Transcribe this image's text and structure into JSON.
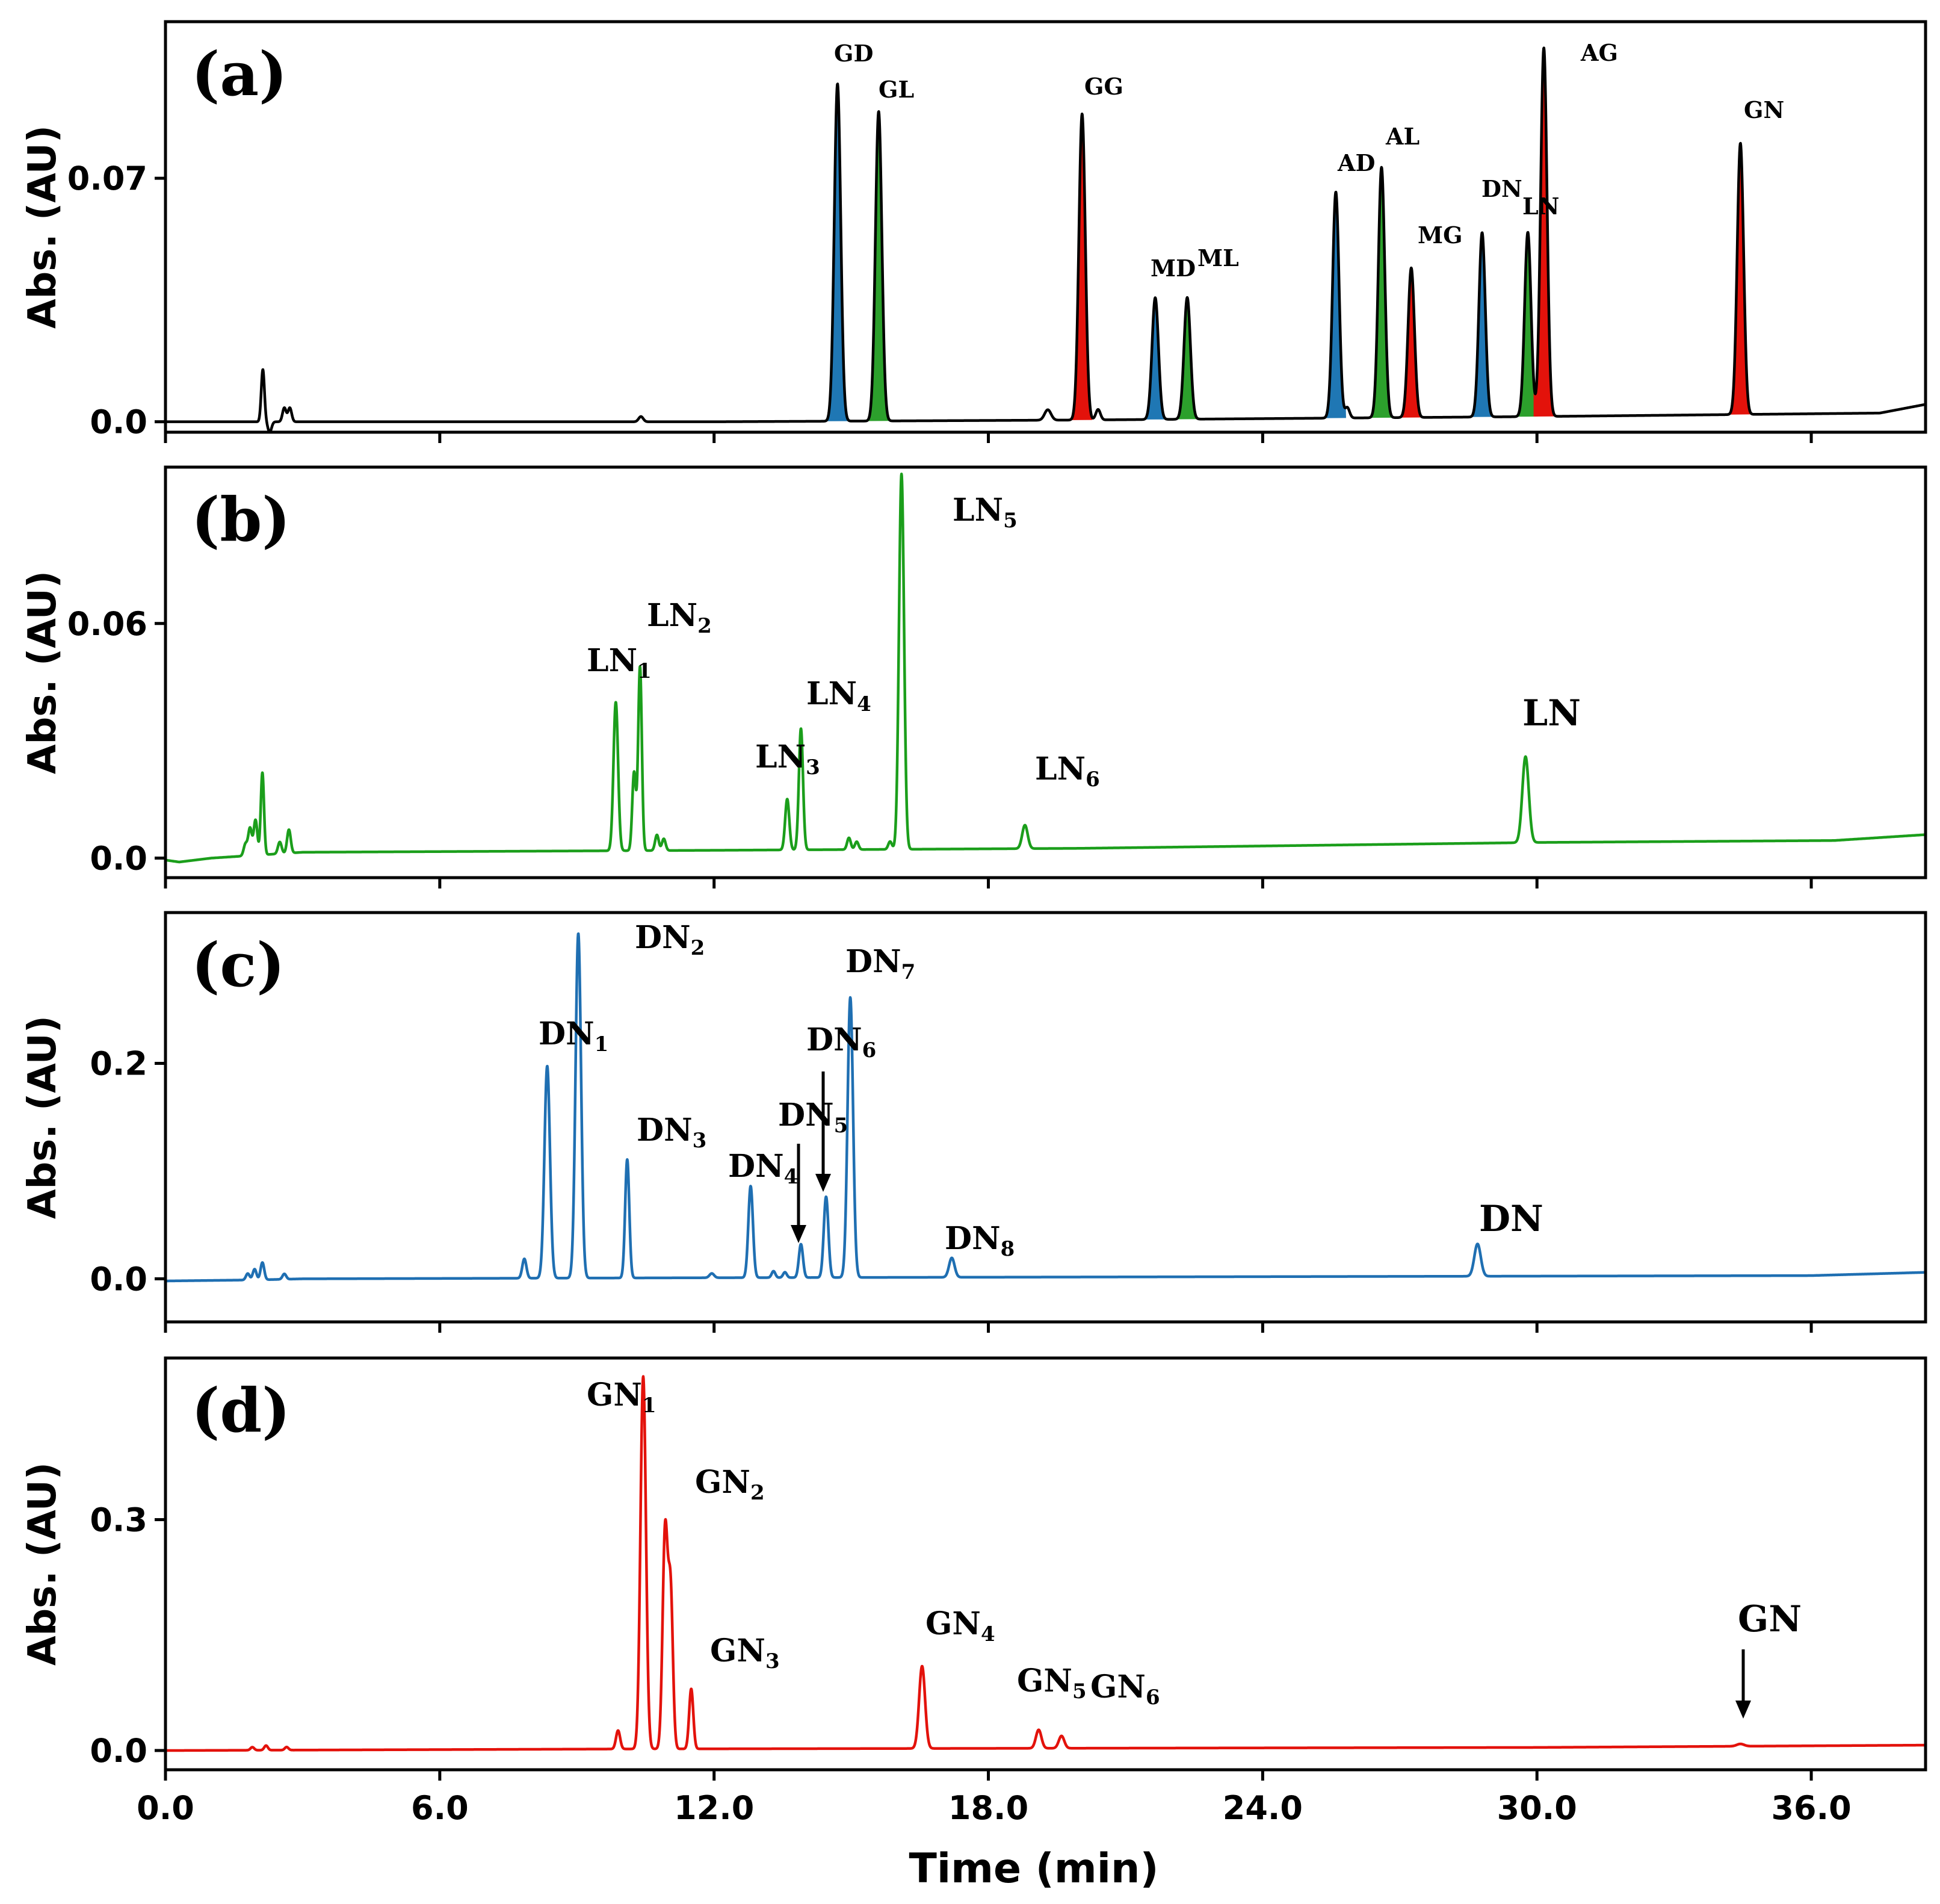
{
  "chart_data": {
    "type": "line",
    "xlabel": "Time (min)",
    "xlim": [
      0,
      38.5
    ],
    "x_ticks": [
      {
        "value": 0,
        "label": "0.0"
      },
      {
        "value": 6,
        "label": "6.0"
      },
      {
        "value": 12,
        "label": "12.0"
      },
      {
        "value": 18,
        "label": "18.0"
      },
      {
        "value": 24,
        "label": "24.0"
      },
      {
        "value": 30,
        "label": "30.0"
      },
      {
        "value": 36,
        "label": "36.0"
      }
    ],
    "panels": [
      {
        "id": "a",
        "label": "(a)",
        "ylabel": "Abs. (AU)",
        "ylim": [
          -0.003,
          0.115
        ],
        "y_ticks": [
          {
            "value": 0,
            "label": "0.0"
          },
          {
            "value": 0.07,
            "label": "0.07"
          }
        ],
        "color": "#000000",
        "baseline": [
          [
            0,
            0
          ],
          [
            12,
            0.0
          ],
          [
            20,
            0.0005
          ],
          [
            30,
            0.0015
          ],
          [
            37.5,
            0.0025
          ],
          [
            38.5,
            0.005
          ]
        ],
        "peaks": [
          {
            "t": 2.13,
            "h": 0.015,
            "w": 0.035,
            "fill": "",
            "label": "",
            "sub": ""
          },
          {
            "t": 2.28,
            "h": -0.003,
            "w": 0.04,
            "fill": "",
            "label": "",
            "sub": ""
          },
          {
            "t": 2.6,
            "h": 0.004,
            "w": 0.04,
            "fill": "",
            "label": "",
            "sub": ""
          },
          {
            "t": 2.72,
            "h": 0.004,
            "w": 0.04,
            "fill": "",
            "label": "",
            "sub": ""
          },
          {
            "t": 10.4,
            "h": 0.0015,
            "w": 0.05,
            "fill": "",
            "label": "",
            "sub": ""
          },
          {
            "t": 14.7,
            "h": 0.097,
            "w": 0.07,
            "fill": "#1f77b4",
            "label": "GD",
            "sub": ""
          },
          {
            "t": 15.6,
            "h": 0.089,
            "w": 0.07,
            "fill": "#2ca02c",
            "label": "GL",
            "sub": ""
          },
          {
            "t": 19.3,
            "h": 0.003,
            "w": 0.07,
            "fill": "",
            "label": "",
            "sub": ""
          },
          {
            "t": 20.05,
            "h": 0.088,
            "w": 0.07,
            "fill": "#e3120b",
            "label": "GG",
            "sub": ""
          },
          {
            "t": 20.4,
            "h": 0.003,
            "w": 0.05,
            "fill": "",
            "label": "",
            "sub": ""
          },
          {
            "t": 21.65,
            "h": 0.035,
            "w": 0.07,
            "fill": "#1f77b4",
            "label": "MD",
            "sub": ""
          },
          {
            "t": 22.35,
            "h": 0.035,
            "w": 0.07,
            "fill": "#2ca02c",
            "label": "ML",
            "sub": ""
          },
          {
            "t": 25.6,
            "h": 0.065,
            "w": 0.07,
            "fill": "#1f77b4",
            "label": "AD",
            "sub": ""
          },
          {
            "t": 25.85,
            "h": 0.003,
            "w": 0.05,
            "fill": "",
            "label": "",
            "sub": ""
          },
          {
            "t": 26.6,
            "h": 0.072,
            "w": 0.07,
            "fill": "#2ca02c",
            "label": "AL",
            "sub": ""
          },
          {
            "t": 27.25,
            "h": 0.043,
            "w": 0.07,
            "fill": "#e3120b",
            "label": "MG",
            "sub": ""
          },
          {
            "t": 28.8,
            "h": 0.053,
            "w": 0.07,
            "fill": "#1f77b4",
            "label": "DN",
            "sub": ""
          },
          {
            "t": 29.8,
            "h": 0.053,
            "w": 0.07,
            "fill": "#2ca02c",
            "label": "LN",
            "sub": ""
          },
          {
            "t": 30.15,
            "h": 0.106,
            "w": 0.07,
            "fill": "#e3120b",
            "label": "AG",
            "sub": ""
          },
          {
            "t": 34.45,
            "h": 0.078,
            "w": 0.07,
            "fill": "#e3120b",
            "label": "GN",
            "sub": ""
          }
        ]
      },
      {
        "id": "b",
        "label": "(b)",
        "ylabel": "Abs. (AU)",
        "ylim": [
          -0.005,
          0.1
        ],
        "y_ticks": [
          {
            "value": 0,
            "label": "0.0"
          },
          {
            "value": 0.06,
            "label": "0.06"
          }
        ],
        "color": "#1b9e1b",
        "baseline": [
          [
            0,
            -0.0005
          ],
          [
            0.3,
            -0.001
          ],
          [
            1,
            0.0
          ],
          [
            3,
            0.0015
          ],
          [
            12,
            0.002
          ],
          [
            20,
            0.0025
          ],
          [
            30,
            0.004
          ],
          [
            36.5,
            0.0045
          ],
          [
            38.5,
            0.006
          ]
        ],
        "peaks": [
          {
            "t": 1.75,
            "h": 0.003,
            "w": 0.04,
            "fill": "",
            "label": "",
            "sub": ""
          },
          {
            "t": 1.85,
            "h": 0.007,
            "w": 0.04,
            "fill": "",
            "label": "",
            "sub": ""
          },
          {
            "t": 1.97,
            "h": 0.009,
            "w": 0.04,
            "fill": "",
            "label": "",
            "sub": ""
          },
          {
            "t": 2.12,
            "h": 0.021,
            "w": 0.035,
            "fill": "",
            "label": "",
            "sub": ""
          },
          {
            "t": 2.5,
            "h": 0.003,
            "w": 0.04,
            "fill": "",
            "label": "",
            "sub": ""
          },
          {
            "t": 2.7,
            "h": 0.006,
            "w": 0.04,
            "fill": "",
            "label": "",
            "sub": ""
          },
          {
            "t": 9.85,
            "h": 0.038,
            "w": 0.05,
            "fill": "",
            "label": "LN",
            "sub": "1"
          },
          {
            "t": 10.25,
            "h": 0.02,
            "w": 0.04,
            "fill": "",
            "label": "",
            "sub": ""
          },
          {
            "t": 10.38,
            "h": 0.047,
            "w": 0.04,
            "fill": "",
            "label": "LN",
            "sub": "2"
          },
          {
            "t": 10.75,
            "h": 0.004,
            "w": 0.04,
            "fill": "",
            "label": "",
            "sub": ""
          },
          {
            "t": 10.9,
            "h": 0.003,
            "w": 0.04,
            "fill": "",
            "label": "",
            "sub": ""
          },
          {
            "t": 13.6,
            "h": 0.013,
            "w": 0.045,
            "fill": "",
            "label": "LN",
            "sub": "3"
          },
          {
            "t": 13.9,
            "h": 0.031,
            "w": 0.045,
            "fill": "",
            "label": "LN",
            "sub": "4"
          },
          {
            "t": 14.95,
            "h": 0.003,
            "w": 0.04,
            "fill": "",
            "label": "",
            "sub": ""
          },
          {
            "t": 15.12,
            "h": 0.002,
            "w": 0.04,
            "fill": "",
            "label": "",
            "sub": ""
          },
          {
            "t": 15.85,
            "h": 0.002,
            "w": 0.04,
            "fill": "",
            "label": "",
            "sub": ""
          },
          {
            "t": 16.1,
            "h": 0.096,
            "w": 0.055,
            "fill": "",
            "label": "LN",
            "sub": "5"
          },
          {
            "t": 18.8,
            "h": 0.006,
            "w": 0.06,
            "fill": "",
            "label": "LN",
            "sub": "6"
          },
          {
            "t": 29.75,
            "h": 0.022,
            "w": 0.07,
            "fill": "",
            "label": "LN",
            "sub": ""
          }
        ]
      },
      {
        "id": "c",
        "label": "(c)",
        "ylabel": "Abs. (AU)",
        "ylim": [
          -0.04,
          0.34
        ],
        "y_ticks": [
          {
            "value": 0,
            "label": "0.0"
          },
          {
            "value": 0.2,
            "label": "0.2"
          }
        ],
        "color": "#1f6fb2",
        "baseline": [
          [
            0,
            -0.002
          ],
          [
            2,
            -0.001
          ],
          [
            3,
            0.0
          ],
          [
            12,
            0.001
          ],
          [
            24,
            0.002
          ],
          [
            36,
            0.003
          ],
          [
            38.5,
            0.006
          ]
        ],
        "peaks": [
          {
            "t": 1.8,
            "h": 0.006,
            "w": 0.04,
            "fill": "",
            "label": "",
            "sub": ""
          },
          {
            "t": 1.95,
            "h": 0.01,
            "w": 0.04,
            "fill": "",
            "label": "",
            "sub": ""
          },
          {
            "t": 2.12,
            "h": 0.016,
            "w": 0.04,
            "fill": "",
            "label": "",
            "sub": ""
          },
          {
            "t": 2.6,
            "h": 0.005,
            "w": 0.04,
            "fill": "",
            "label": "",
            "sub": ""
          },
          {
            "t": 7.85,
            "h": 0.018,
            "w": 0.045,
            "fill": "",
            "label": "",
            "sub": ""
          },
          {
            "t": 8.35,
            "h": 0.197,
            "w": 0.06,
            "fill": "",
            "label": "DN",
            "sub": "1"
          },
          {
            "t": 9.03,
            "h": 0.32,
            "w": 0.06,
            "fill": "",
            "label": "DN",
            "sub": "2"
          },
          {
            "t": 10.1,
            "h": 0.11,
            "w": 0.045,
            "fill": "",
            "label": "DN",
            "sub": "3"
          },
          {
            "t": 11.95,
            "h": 0.004,
            "w": 0.05,
            "fill": "",
            "label": "",
            "sub": ""
          },
          {
            "t": 12.8,
            "h": 0.085,
            "w": 0.05,
            "fill": "",
            "label": "DN",
            "sub": "4"
          },
          {
            "t": 13.3,
            "h": 0.006,
            "w": 0.04,
            "fill": "",
            "label": "",
            "sub": ""
          },
          {
            "t": 13.55,
            "h": 0.005,
            "w": 0.04,
            "fill": "",
            "label": "",
            "sub": ""
          },
          {
            "t": 13.9,
            "h": 0.031,
            "w": 0.045,
            "fill": "",
            "label": "DN",
            "sub": "5"
          },
          {
            "t": 14.45,
            "h": 0.075,
            "w": 0.05,
            "fill": "",
            "label": "DN",
            "sub": "6"
          },
          {
            "t": 14.98,
            "h": 0.26,
            "w": 0.06,
            "fill": "",
            "label": "DN",
            "sub": "7"
          },
          {
            "t": 17.2,
            "h": 0.018,
            "w": 0.06,
            "fill": "",
            "label": "DN",
            "sub": "8"
          },
          {
            "t": 28.7,
            "h": 0.03,
            "w": 0.07,
            "fill": "",
            "label": "DN",
            "sub": ""
          }
        ]
      },
      {
        "id": "d",
        "label": "(d)",
        "ylabel": "Abs. (AU)",
        "ylim": [
          -0.025,
          0.51
        ],
        "y_ticks": [
          {
            "value": 0,
            "label": "0.0"
          },
          {
            "value": 0.3,
            "label": "0.3"
          }
        ],
        "color": "#e3120b",
        "baseline": [
          [
            0,
            0.0
          ],
          [
            10,
            0.002
          ],
          [
            20,
            0.003
          ],
          [
            30,
            0.004
          ],
          [
            38.5,
            0.007
          ]
        ],
        "peaks": [
          {
            "t": 1.9,
            "h": 0.004,
            "w": 0.04,
            "fill": "",
            "label": "",
            "sub": ""
          },
          {
            "t": 2.2,
            "h": 0.006,
            "w": 0.04,
            "fill": "",
            "label": "",
            "sub": ""
          },
          {
            "t": 2.65,
            "h": 0.004,
            "w": 0.04,
            "fill": "",
            "label": "",
            "sub": ""
          },
          {
            "t": 9.9,
            "h": 0.024,
            "w": 0.045,
            "fill": "",
            "label": "",
            "sub": ""
          },
          {
            "t": 10.45,
            "h": 0.484,
            "w": 0.06,
            "fill": "",
            "label": "GN",
            "sub": "1"
          },
          {
            "t": 10.93,
            "h": 0.285,
            "w": 0.055,
            "fill": "",
            "label": "GN",
            "sub": "2"
          },
          {
            "t": 11.05,
            "h": 0.2,
            "w": 0.05,
            "fill": "",
            "label": "",
            "sub": ""
          },
          {
            "t": 11.5,
            "h": 0.078,
            "w": 0.045,
            "fill": "",
            "label": "GN",
            "sub": "3"
          },
          {
            "t": 16.55,
            "h": 0.107,
            "w": 0.065,
            "fill": "",
            "label": "GN",
            "sub": "4"
          },
          {
            "t": 19.1,
            "h": 0.024,
            "w": 0.06,
            "fill": "",
            "label": "GN",
            "sub": "5"
          },
          {
            "t": 19.6,
            "h": 0.016,
            "w": 0.06,
            "fill": "",
            "label": "GN",
            "sub": "6"
          },
          {
            "t": 34.45,
            "h": 0.003,
            "w": 0.08,
            "fill": "",
            "label": "GN",
            "sub": ""
          }
        ]
      }
    ]
  }
}
